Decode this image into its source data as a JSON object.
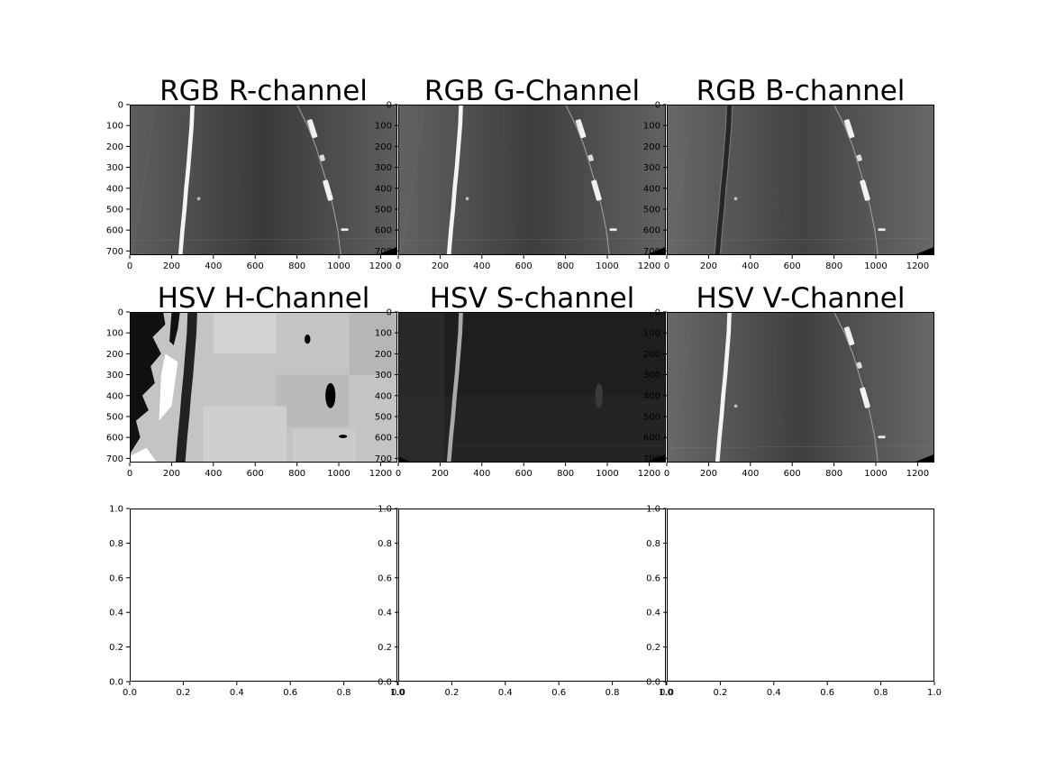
{
  "figure": {
    "background": "#ffffff"
  },
  "chart_data": [
    {
      "type": "image",
      "title": "RGB R-channel",
      "channel": "R",
      "colormap": "gray",
      "image_size": [
        1280,
        720
      ],
      "xlim": [
        0,
        1280
      ],
      "ylim": [
        720,
        0
      ],
      "xticks": [
        "0",
        "200",
        "400",
        "600",
        "800",
        "1000",
        "1200"
      ],
      "yticks": [
        "0",
        "100",
        "200",
        "300",
        "400",
        "500",
        "600",
        "700"
      ]
    },
    {
      "type": "image",
      "title": "RGB G-Channel",
      "channel": "G",
      "colormap": "gray",
      "image_size": [
        1280,
        720
      ],
      "xlim": [
        0,
        1280
      ],
      "ylim": [
        720,
        0
      ],
      "xticks": [
        "0",
        "200",
        "400",
        "600",
        "800",
        "1000",
        "1200"
      ],
      "yticks": [
        "0",
        "100",
        "200",
        "300",
        "400",
        "500",
        "600",
        "700"
      ]
    },
    {
      "type": "image",
      "title": "RGB B-channel",
      "channel": "B",
      "colormap": "gray",
      "image_size": [
        1280,
        720
      ],
      "xlim": [
        0,
        1280
      ],
      "ylim": [
        720,
        0
      ],
      "xticks": [
        "0",
        "200",
        "400",
        "600",
        "800",
        "1000",
        "1200"
      ],
      "yticks": [
        "0",
        "100",
        "200",
        "300",
        "400",
        "500",
        "600",
        "700"
      ]
    },
    {
      "type": "image",
      "title": "HSV H-Channel",
      "channel": "H",
      "colormap": "gray",
      "image_size": [
        1280,
        720
      ],
      "xlim": [
        0,
        1280
      ],
      "ylim": [
        720,
        0
      ],
      "xticks": [
        "0",
        "200",
        "400",
        "600",
        "800",
        "1000",
        "1200"
      ],
      "yticks": [
        "0",
        "100",
        "200",
        "300",
        "400",
        "500",
        "600",
        "700"
      ]
    },
    {
      "type": "image",
      "title": "HSV S-channel",
      "channel": "S",
      "colormap": "gray",
      "image_size": [
        1280,
        720
      ],
      "xlim": [
        0,
        1280
      ],
      "ylim": [
        720,
        0
      ],
      "xticks": [
        "0",
        "200",
        "400",
        "600",
        "800",
        "1000",
        "1200"
      ],
      "yticks": [
        "0",
        "100",
        "200",
        "300",
        "400",
        "500",
        "600",
        "700"
      ]
    },
    {
      "type": "image",
      "title": "HSV V-Channel",
      "channel": "V",
      "colormap": "gray",
      "image_size": [
        1280,
        720
      ],
      "xlim": [
        0,
        1280
      ],
      "ylim": [
        720,
        0
      ],
      "xticks": [
        "0",
        "200",
        "400",
        "600",
        "800",
        "1000",
        "1200"
      ],
      "yticks": [
        "0",
        "100",
        "200",
        "300",
        "400",
        "500",
        "600",
        "700"
      ]
    },
    {
      "type": "empty",
      "title": "",
      "xlim": [
        0,
        1
      ],
      "ylim": [
        0,
        1
      ],
      "xticks": [
        "0.0",
        "0.2",
        "0.4",
        "0.6",
        "0.8",
        "1.0"
      ],
      "yticks": [
        "0.0",
        "0.2",
        "0.4",
        "0.6",
        "0.8",
        "1.0"
      ]
    },
    {
      "type": "empty",
      "title": "",
      "xlim": [
        0,
        1
      ],
      "ylim": [
        0,
        1
      ],
      "xticks": [
        "0.0",
        "0.2",
        "0.4",
        "0.6",
        "0.8",
        "1.0"
      ],
      "yticks": [
        "0.0",
        "0.2",
        "0.4",
        "0.6",
        "0.8",
        "1.0"
      ]
    },
    {
      "type": "empty",
      "title": "",
      "xlim": [
        0,
        1
      ],
      "ylim": [
        0,
        1
      ],
      "xticks": [
        "0.0",
        "0.2",
        "0.4",
        "0.6",
        "0.8",
        "1.0"
      ],
      "yticks": [
        "0.0",
        "0.2",
        "0.4",
        "0.6",
        "0.8",
        "1.0"
      ]
    }
  ]
}
